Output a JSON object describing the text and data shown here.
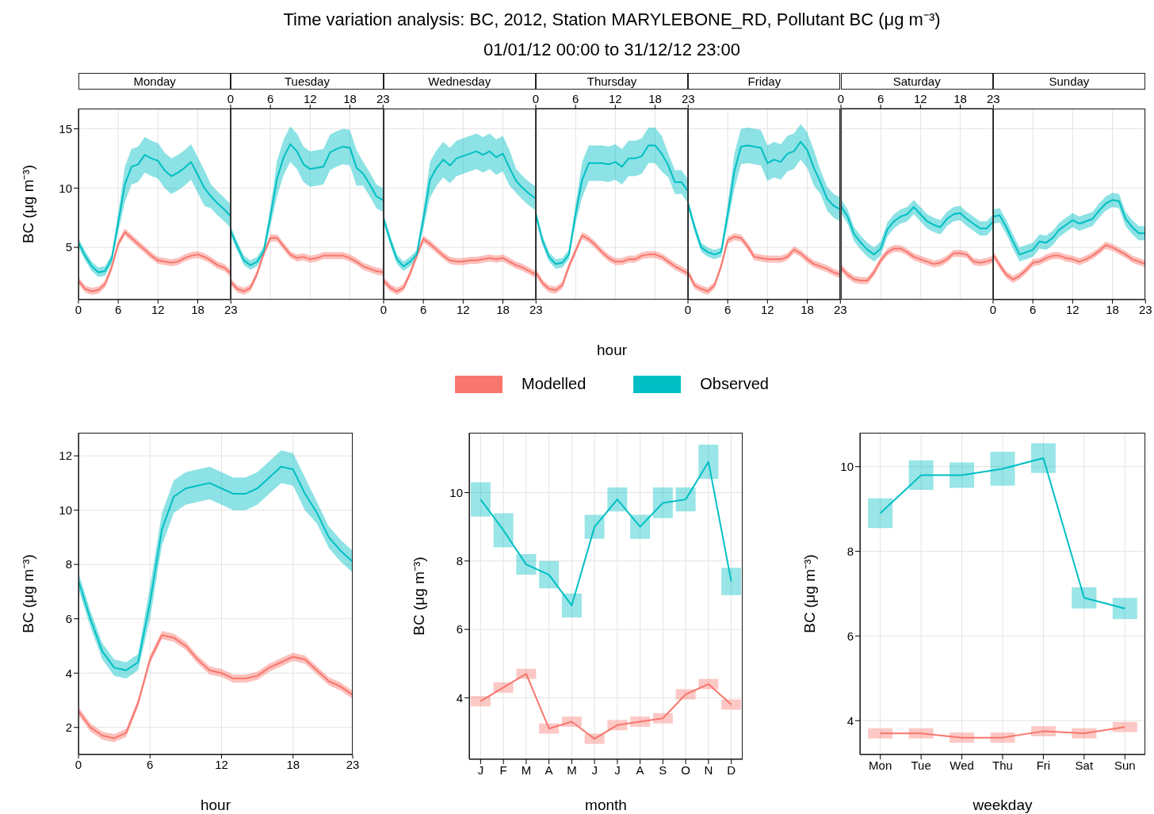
{
  "chart_data": [
    {
      "type": "line",
      "title": "Monday",
      "annotations": [
        "Time variation analysis: BC, 2012, Station MARYLEBONE_RD, Pollutant BC (μg m⁻³)",
        "01/01/12 00:00 to 31/12/12 23:00"
      ],
      "ylabel": "BC (μg m⁻³)",
      "x": [
        0,
        1,
        2,
        3,
        4,
        5,
        6,
        7,
        8,
        9,
        10,
        11,
        12,
        13,
        14,
        15,
        16,
        17,
        18,
        19,
        20,
        21,
        22,
        23
      ],
      "xlim": [
        0,
        23
      ],
      "xticks": [
        0,
        6,
        12,
        18,
        23
      ],
      "ylim": [
        0.6,
        16.7
      ],
      "yticks": [
        5,
        10,
        15
      ],
      "grid": true,
      "series": [
        {
          "color": "#f8766d",
          "values": [
            2.2,
            1.5,
            1.3,
            1.4,
            1.9,
            3.3,
            5.3,
            6.3,
            5.8,
            5.3,
            4.8,
            4.3,
            3.9,
            3.8,
            3.7,
            3.8,
            4.1,
            4.3,
            4.4,
            4.2,
            3.9,
            3.5,
            3.3,
            2.8
          ],
          "lower": [
            1.9,
            1.2,
            1.0,
            1.1,
            1.6,
            3.0,
            5.0,
            6.0,
            5.5,
            5.0,
            4.5,
            4.0,
            3.6,
            3.5,
            3.4,
            3.5,
            3.8,
            4.0,
            4.1,
            3.9,
            3.6,
            3.2,
            3.0,
            2.5
          ],
          "upper": [
            2.5,
            1.8,
            1.6,
            1.7,
            2.2,
            3.6,
            5.6,
            6.6,
            6.1,
            5.6,
            5.1,
            4.6,
            4.2,
            4.1,
            4.0,
            4.1,
            4.4,
            4.6,
            4.7,
            4.5,
            4.2,
            3.8,
            3.6,
            3.1
          ]
        },
        {
          "color": "#00bfc4",
          "values": [
            5.4,
            4.3,
            3.4,
            2.9,
            3.0,
            4.0,
            7.1,
            10.3,
            11.8,
            12.0,
            12.8,
            12.5,
            12.3,
            11.5,
            11.0,
            11.3,
            11.7,
            12.2,
            11.1,
            10.0,
            9.3,
            8.7,
            8.2,
            7.6
          ],
          "lower": [
            5.0,
            3.9,
            3.0,
            2.5,
            2.6,
            3.6,
            6.3,
            8.8,
            10.3,
            10.5,
            11.3,
            11.0,
            10.8,
            10.0,
            9.5,
            9.8,
            10.2,
            10.7,
            9.6,
            8.5,
            8.3,
            7.7,
            7.2,
            6.6
          ],
          "upper": [
            5.8,
            4.7,
            3.8,
            3.3,
            3.4,
            4.4,
            7.9,
            11.8,
            13.3,
            13.5,
            14.3,
            14.0,
            13.8,
            13.0,
            12.5,
            12.8,
            13.2,
            13.7,
            12.6,
            11.5,
            10.3,
            9.7,
            9.2,
            8.6
          ]
        }
      ]
    },
    {
      "type": "line",
      "title": "Tuesday",
      "x": [
        0,
        1,
        2,
        3,
        4,
        5,
        6,
        7,
        8,
        9,
        10,
        11,
        12,
        13,
        14,
        15,
        16,
        17,
        18,
        19,
        20,
        21,
        22,
        23
      ],
      "xlim": [
        0,
        23
      ],
      "xticks": [
        0,
        6,
        12,
        18,
        23
      ],
      "ylim": [
        0.6,
        16.7
      ],
      "yticks": [
        5,
        10,
        15
      ],
      "grid": true,
      "tick_labels": "x",
      "series": [
        {
          "color": "#f8766d",
          "values": [
            2.1,
            1.5,
            1.3,
            1.6,
            2.8,
            4.5,
            5.8,
            5.8,
            5.1,
            4.4,
            4.1,
            4.2,
            4.0,
            4.1,
            4.3,
            4.3,
            4.3,
            4.3,
            4.1,
            3.8,
            3.4,
            3.2,
            3.0,
            2.9
          ],
          "lower": [
            1.8,
            1.2,
            1.0,
            1.3,
            2.5,
            4.2,
            5.5,
            5.5,
            4.8,
            4.1,
            3.8,
            3.9,
            3.7,
            3.8,
            4.0,
            4.0,
            4.0,
            4.0,
            3.8,
            3.5,
            3.1,
            2.9,
            2.7,
            2.6
          ],
          "upper": [
            2.4,
            1.8,
            1.6,
            1.9,
            3.1,
            4.8,
            6.1,
            6.1,
            5.4,
            4.7,
            4.4,
            4.5,
            4.3,
            4.4,
            4.6,
            4.6,
            4.6,
            4.6,
            4.4,
            4.1,
            3.7,
            3.5,
            3.3,
            3.2
          ]
        },
        {
          "color": "#00bfc4",
          "values": [
            6.4,
            5.1,
            3.9,
            3.5,
            3.8,
            4.7,
            7.6,
            10.8,
            12.6,
            13.7,
            13.1,
            12.0,
            11.6,
            11.7,
            11.8,
            13.0,
            13.3,
            13.5,
            13.4,
            11.7,
            11.2,
            10.3,
            9.3,
            9.0
          ],
          "lower": [
            6.0,
            4.7,
            3.5,
            3.1,
            3.4,
            4.3,
            6.8,
            9.3,
            11.1,
            12.2,
            11.6,
            10.5,
            10.1,
            10.2,
            10.3,
            11.5,
            11.8,
            12.0,
            11.9,
            10.2,
            10.2,
            9.3,
            8.3,
            8.0
          ],
          "upper": [
            6.8,
            5.5,
            4.3,
            3.9,
            4.2,
            5.1,
            8.4,
            12.3,
            14.1,
            15.2,
            14.6,
            13.5,
            13.1,
            13.2,
            13.3,
            14.5,
            14.8,
            15.0,
            14.9,
            13.2,
            12.2,
            11.3,
            10.3,
            10.0
          ]
        }
      ]
    },
    {
      "type": "line",
      "title": "Wednesday",
      "x": [
        0,
        1,
        2,
        3,
        4,
        5,
        6,
        7,
        8,
        9,
        10,
        11,
        12,
        13,
        14,
        15,
        16,
        17,
        18,
        19,
        20,
        21,
        22,
        23
      ],
      "xlim": [
        0,
        23
      ],
      "xticks": [
        0,
        6,
        12,
        18,
        23
      ],
      "ylim": [
        0.6,
        16.7
      ],
      "yticks": [
        5,
        10,
        15
      ],
      "grid": true,
      "tick_labels": "x",
      "series": [
        {
          "color": "#f8766d",
          "values": [
            2.2,
            1.6,
            1.3,
            1.6,
            2.8,
            4.3,
            5.7,
            5.3,
            4.8,
            4.3,
            3.9,
            3.8,
            3.8,
            3.9,
            3.9,
            4.0,
            4.1,
            4.0,
            4.1,
            3.8,
            3.5,
            3.3,
            3.0,
            2.7
          ],
          "lower": [
            1.9,
            1.3,
            1.0,
            1.3,
            2.5,
            4.0,
            5.4,
            5.0,
            4.5,
            4.0,
            3.6,
            3.5,
            3.5,
            3.6,
            3.6,
            3.7,
            3.8,
            3.7,
            3.8,
            3.5,
            3.2,
            3.0,
            2.7,
            2.4
          ],
          "upper": [
            2.5,
            1.9,
            1.6,
            1.9,
            3.1,
            4.6,
            6.0,
            5.6,
            5.1,
            4.6,
            4.2,
            4.1,
            4.1,
            4.2,
            4.2,
            4.3,
            4.4,
            4.3,
            4.4,
            4.1,
            3.8,
            3.6,
            3.3,
            3.0
          ]
        },
        {
          "color": "#00bfc4",
          "values": [
            7.4,
            5.6,
            4.0,
            3.4,
            3.8,
            4.4,
            7.4,
            10.7,
            11.7,
            12.4,
            11.9,
            12.5,
            12.7,
            12.9,
            13.1,
            12.8,
            13.1,
            12.6,
            12.9,
            11.7,
            10.6,
            10.0,
            9.5,
            9.1
          ],
          "lower": [
            7.0,
            5.2,
            3.6,
            3.0,
            3.4,
            4.0,
            6.6,
            9.2,
            10.2,
            10.9,
            10.4,
            11.0,
            11.2,
            11.4,
            11.6,
            11.3,
            11.6,
            11.1,
            11.4,
            10.2,
            9.6,
            9.0,
            8.5,
            8.1
          ],
          "upper": [
            7.8,
            6.0,
            4.4,
            3.8,
            4.2,
            4.8,
            8.2,
            12.2,
            13.2,
            13.9,
            13.4,
            14.0,
            14.2,
            14.4,
            14.6,
            14.3,
            14.6,
            14.1,
            14.4,
            13.2,
            11.6,
            11.0,
            10.5,
            10.1
          ]
        }
      ]
    },
    {
      "type": "line",
      "title": "Thursday",
      "xlabel": "hour",
      "legend": "bottom",
      "x": [
        0,
        1,
        2,
        3,
        4,
        5,
        6,
        7,
        8,
        9,
        10,
        11,
        12,
        13,
        14,
        15,
        16,
        17,
        18,
        19,
        20,
        21,
        22,
        23
      ],
      "xlim": [
        0,
        23
      ],
      "xticks": [
        0,
        6,
        12,
        18,
        23
      ],
      "ylim": [
        0.6,
        16.7
      ],
      "yticks": [
        5,
        10,
        15
      ],
      "grid": true,
      "tick_labels": "x",
      "series": [
        {
          "name": "Modelled",
          "color": "#f8766d",
          "values": [
            2.9,
            2.0,
            1.5,
            1.4,
            1.8,
            3.4,
            4.7,
            6.0,
            5.7,
            5.2,
            4.6,
            4.1,
            3.8,
            3.8,
            4.0,
            4.0,
            4.3,
            4.4,
            4.4,
            4.2,
            3.8,
            3.4,
            3.1,
            2.8
          ],
          "lower": [
            2.6,
            1.7,
            1.2,
            1.1,
            1.5,
            3.1,
            4.4,
            5.7,
            5.4,
            4.9,
            4.3,
            3.8,
            3.5,
            3.5,
            3.7,
            3.7,
            4.0,
            4.1,
            4.1,
            3.9,
            3.5,
            3.1,
            2.8,
            2.5
          ],
          "upper": [
            3.2,
            2.3,
            1.8,
            1.7,
            2.1,
            3.7,
            5.0,
            6.3,
            6.0,
            5.5,
            4.9,
            4.4,
            4.1,
            4.1,
            4.3,
            4.3,
            4.6,
            4.7,
            4.7,
            4.5,
            4.1,
            3.7,
            3.4,
            3.1
          ]
        },
        {
          "name": "Observed",
          "color": "#00bfc4",
          "values": [
            7.8,
            5.6,
            4.2,
            3.6,
            3.7,
            4.4,
            7.8,
            10.7,
            12.1,
            12.1,
            12.1,
            12.0,
            12.2,
            11.8,
            12.5,
            12.5,
            12.7,
            13.6,
            13.6,
            12.9,
            11.9,
            10.5,
            10.5,
            9.7
          ],
          "lower": [
            7.4,
            5.2,
            3.8,
            3.2,
            3.3,
            4.0,
            7.0,
            9.2,
            10.6,
            10.6,
            10.6,
            10.5,
            10.7,
            10.3,
            11.0,
            11.0,
            11.2,
            12.1,
            12.1,
            11.4,
            10.9,
            9.5,
            9.5,
            8.7
          ],
          "upper": [
            8.2,
            6.0,
            4.6,
            4.0,
            4.1,
            4.8,
            8.6,
            12.2,
            13.6,
            13.6,
            13.6,
            13.5,
            13.7,
            13.3,
            14.0,
            14.0,
            14.2,
            15.1,
            15.1,
            14.4,
            12.9,
            11.5,
            11.5,
            10.7
          ]
        }
      ]
    },
    {
      "type": "line",
      "title": "Friday",
      "x": [
        0,
        1,
        2,
        3,
        4,
        5,
        6,
        7,
        8,
        9,
        10,
        11,
        12,
        13,
        14,
        15,
        16,
        17,
        18,
        19,
        20,
        21,
        22,
        23
      ],
      "xlim": [
        0,
        23
      ],
      "xticks": [
        0,
        6,
        12,
        18,
        23
      ],
      "ylim": [
        0.6,
        16.7
      ],
      "yticks": [
        5,
        10,
        15
      ],
      "grid": true,
      "tick_labels": "x",
      "series": [
        {
          "color": "#f8766d",
          "values": [
            2.9,
            1.8,
            1.5,
            1.3,
            1.8,
            3.4,
            5.6,
            5.9,
            5.8,
            5.1,
            4.2,
            4.1,
            4.0,
            4.0,
            4.0,
            4.2,
            4.8,
            4.5,
            4.0,
            3.6,
            3.4,
            3.2,
            2.9,
            2.7
          ],
          "lower": [
            2.6,
            1.5,
            1.2,
            1.0,
            1.5,
            3.1,
            5.3,
            5.6,
            5.5,
            4.8,
            3.9,
            3.8,
            3.7,
            3.7,
            3.7,
            3.9,
            4.5,
            4.2,
            3.7,
            3.3,
            3.1,
            2.9,
            2.6,
            2.4
          ],
          "upper": [
            3.2,
            2.1,
            1.8,
            1.6,
            2.1,
            3.7,
            5.9,
            6.2,
            6.1,
            5.4,
            4.5,
            4.4,
            4.3,
            4.3,
            4.3,
            4.5,
            5.1,
            4.8,
            4.3,
            3.9,
            3.7,
            3.5,
            3.2,
            3.0
          ]
        },
        {
          "color": "#00bfc4",
          "values": [
            8.7,
            6.7,
            5.0,
            4.6,
            4.4,
            4.6,
            7.8,
            11.4,
            13.5,
            13.6,
            13.5,
            13.4,
            12.1,
            12.4,
            12.2,
            12.9,
            13.1,
            13.9,
            13.2,
            11.7,
            10.5,
            9.1,
            8.5,
            8.2
          ],
          "lower": [
            8.3,
            6.3,
            4.6,
            4.2,
            4.0,
            4.2,
            7.0,
            9.9,
            12.0,
            12.1,
            12.0,
            11.9,
            10.6,
            10.9,
            10.7,
            11.4,
            11.6,
            12.4,
            11.7,
            10.2,
            9.5,
            8.1,
            7.5,
            7.2
          ],
          "upper": [
            9.1,
            7.1,
            5.4,
            5.0,
            4.8,
            5.0,
            8.6,
            12.9,
            15.0,
            15.1,
            15.0,
            14.9,
            13.6,
            13.9,
            13.7,
            14.4,
            14.6,
            15.4,
            14.7,
            13.2,
            11.5,
            10.1,
            9.5,
            9.2
          ]
        }
      ]
    },
    {
      "type": "line",
      "title": "Saturday",
      "x": [
        0,
        1,
        2,
        3,
        4,
        5,
        6,
        7,
        8,
        9,
        10,
        11,
        12,
        13,
        14,
        15,
        16,
        17,
        18,
        19,
        20,
        21,
        22,
        23
      ],
      "xlim": [
        0,
        23
      ],
      "xticks": [
        0,
        6,
        12,
        18,
        23
      ],
      "ylim": [
        0.6,
        16.7
      ],
      "yticks": [
        5,
        10,
        15
      ],
      "grid": true,
      "tick_labels": "x",
      "series": [
        {
          "color": "#f8766d",
          "values": [
            3.3,
            2.7,
            2.3,
            2.2,
            2.2,
            2.9,
            3.9,
            4.6,
            4.9,
            4.9,
            4.6,
            4.2,
            4.0,
            3.8,
            3.6,
            3.7,
            4.0,
            4.5,
            4.5,
            4.4,
            3.8,
            3.7,
            3.8,
            4.0
          ],
          "lower": [
            3.0,
            2.4,
            2.0,
            1.9,
            1.9,
            2.6,
            3.6,
            4.3,
            4.6,
            4.6,
            4.3,
            3.9,
            3.7,
            3.5,
            3.3,
            3.4,
            3.7,
            4.2,
            4.2,
            4.1,
            3.5,
            3.4,
            3.5,
            3.7
          ],
          "upper": [
            3.6,
            3.0,
            2.6,
            2.5,
            2.5,
            3.2,
            4.2,
            4.9,
            5.2,
            5.2,
            4.9,
            4.5,
            4.3,
            4.1,
            3.9,
            4.0,
            4.3,
            4.8,
            4.8,
            4.7,
            4.1,
            4.0,
            4.1,
            4.3
          ]
        },
        {
          "color": "#00bfc4",
          "values": [
            8.5,
            7.6,
            6.1,
            5.4,
            4.8,
            4.4,
            4.9,
            6.5,
            7.2,
            7.6,
            7.8,
            8.4,
            7.8,
            7.2,
            6.9,
            6.7,
            7.4,
            7.8,
            7.9,
            7.4,
            7.0,
            6.6,
            6.6,
            7.2
          ],
          "lower": [
            7.9,
            7.0,
            5.5,
            4.8,
            4.2,
            3.8,
            4.3,
            5.9,
            6.6,
            7.0,
            7.2,
            7.8,
            7.2,
            6.6,
            6.3,
            6.1,
            6.8,
            7.2,
            7.3,
            6.8,
            6.4,
            6.0,
            6.0,
            6.6
          ],
          "upper": [
            9.1,
            8.2,
            6.7,
            6.0,
            5.4,
            5.0,
            5.5,
            7.1,
            7.8,
            8.2,
            8.4,
            9.0,
            8.4,
            7.8,
            7.5,
            7.3,
            8.0,
            8.4,
            8.5,
            8.0,
            7.6,
            7.2,
            7.2,
            7.8
          ]
        }
      ]
    },
    {
      "type": "line",
      "title": "Sunday",
      "x": [
        0,
        1,
        2,
        3,
        4,
        5,
        6,
        7,
        8,
        9,
        10,
        11,
        12,
        13,
        14,
        15,
        16,
        17,
        18,
        19,
        20,
        21,
        22,
        23
      ],
      "xlim": [
        0,
        23
      ],
      "xticks": [
        0,
        6,
        12,
        18,
        23
      ],
      "ylim": [
        0.6,
        16.7
      ],
      "yticks": [
        5,
        10,
        15
      ],
      "grid": true,
      "tick_labels": "x",
      "series": [
        {
          "color": "#f8766d",
          "values": [
            4.4,
            3.5,
            2.7,
            2.3,
            2.6,
            3.1,
            3.7,
            3.8,
            4.1,
            4.3,
            4.3,
            4.1,
            4.0,
            3.8,
            4.0,
            4.3,
            4.7,
            5.2,
            5.0,
            4.7,
            4.4,
            4.0,
            3.8,
            3.6
          ],
          "lower": [
            4.1,
            3.2,
            2.4,
            2.0,
            2.3,
            2.8,
            3.4,
            3.5,
            3.8,
            4.0,
            4.0,
            3.8,
            3.7,
            3.5,
            3.7,
            4.0,
            4.4,
            4.9,
            4.7,
            4.4,
            4.1,
            3.7,
            3.5,
            3.3
          ],
          "upper": [
            4.7,
            3.8,
            3.0,
            2.6,
            2.9,
            3.4,
            4.0,
            4.1,
            4.4,
            4.6,
            4.6,
            4.4,
            4.3,
            4.1,
            4.3,
            4.6,
            5.0,
            5.5,
            5.3,
            5.0,
            4.7,
            4.3,
            4.1,
            3.9
          ]
        },
        {
          "color": "#00bfc4",
          "values": [
            7.6,
            7.7,
            6.7,
            5.5,
            4.4,
            4.6,
            4.8,
            5.5,
            5.4,
            5.8,
            6.5,
            6.9,
            7.3,
            7.0,
            7.2,
            7.4,
            8.1,
            8.7,
            9.0,
            8.9,
            7.4,
            6.7,
            6.2,
            6.2
          ],
          "lower": [
            7.0,
            7.1,
            6.1,
            4.9,
            3.8,
            4.0,
            4.2,
            4.9,
            4.8,
            5.2,
            5.9,
            6.3,
            6.7,
            6.4,
            6.6,
            6.8,
            7.5,
            8.1,
            8.4,
            8.3,
            6.8,
            6.1,
            5.6,
            5.6
          ],
          "upper": [
            8.2,
            8.3,
            7.3,
            6.1,
            5.0,
            5.2,
            5.4,
            6.1,
            6.0,
            6.4,
            7.1,
            7.5,
            7.9,
            7.6,
            7.8,
            8.0,
            8.7,
            9.3,
            9.6,
            9.5,
            8.0,
            7.3,
            6.8,
            6.8
          ]
        }
      ]
    },
    {
      "type": "line",
      "xlabel": "hour",
      "ylabel": "BC (μg m⁻³)",
      "x": [
        0,
        1,
        2,
        3,
        4,
        5,
        6,
        7,
        8,
        9,
        10,
        11,
        12,
        13,
        14,
        15,
        16,
        17,
        18,
        19,
        20,
        21,
        22,
        23
      ],
      "xlim": [
        0,
        23
      ],
      "xticks": [
        0,
        6,
        12,
        18,
        23
      ],
      "ylim": [
        1,
        12.85
      ],
      "yticks": [
        2,
        4,
        6,
        8,
        10,
        12
      ],
      "grid": true,
      "series": [
        {
          "color": "#f8766d",
          "values": [
            2.6,
            2.0,
            1.7,
            1.6,
            1.8,
            2.9,
            4.5,
            5.4,
            5.3,
            5.0,
            4.5,
            4.1,
            4.0,
            3.8,
            3.8,
            3.9,
            4.2,
            4.4,
            4.6,
            4.5,
            4.1,
            3.7,
            3.5,
            3.2
          ],
          "lower": [
            2.45,
            1.85,
            1.55,
            1.45,
            1.65,
            2.75,
            4.35,
            5.25,
            5.15,
            4.85,
            4.35,
            3.95,
            3.85,
            3.65,
            3.65,
            3.75,
            4.05,
            4.25,
            4.45,
            4.35,
            3.95,
            3.55,
            3.35,
            3.05
          ],
          "upper": [
            2.75,
            2.15,
            1.85,
            1.75,
            1.95,
            3.05,
            4.65,
            5.55,
            5.45,
            5.15,
            4.65,
            4.25,
            4.15,
            3.95,
            3.95,
            4.05,
            4.35,
            4.55,
            4.75,
            4.65,
            4.25,
            3.85,
            3.65,
            3.35
          ]
        },
        {
          "color": "#00bfc4",
          "values": [
            7.4,
            6.0,
            4.8,
            4.2,
            4.1,
            4.4,
            6.6,
            9.3,
            10.5,
            10.8,
            10.9,
            11.0,
            10.8,
            10.6,
            10.6,
            10.8,
            11.2,
            11.6,
            11.5,
            10.6,
            9.9,
            9.0,
            8.5,
            8.1
          ],
          "lower": [
            7.1,
            5.7,
            4.5,
            3.9,
            3.8,
            4.1,
            6.0,
            8.7,
            9.9,
            10.2,
            10.3,
            10.4,
            10.2,
            10.0,
            10.0,
            10.2,
            10.6,
            11.0,
            10.9,
            10.0,
            9.5,
            8.6,
            8.1,
            7.7
          ],
          "upper": [
            7.7,
            6.3,
            5.1,
            4.5,
            4.4,
            4.7,
            7.2,
            9.9,
            11.1,
            11.4,
            11.5,
            11.6,
            11.4,
            11.2,
            11.2,
            11.4,
            11.8,
            12.2,
            12.1,
            11.2,
            10.3,
            9.4,
            8.9,
            8.5
          ]
        }
      ]
    },
    {
      "type": "line",
      "xlabel": "month",
      "ylabel": "BC (μg m⁻³)",
      "categories": [
        "J",
        "F",
        "M",
        "A",
        "M",
        "J",
        "J",
        "A",
        "S",
        "O",
        "N",
        "D"
      ],
      "ylim": [
        2.2,
        11.75
      ],
      "yticks": [
        4,
        6,
        8,
        10
      ],
      "grid": true,
      "series": [
        {
          "color": "#f8766d",
          "values": [
            3.9,
            4.3,
            4.7,
            3.1,
            3.3,
            2.8,
            3.2,
            3.3,
            3.4,
            4.1,
            4.4,
            3.8
          ],
          "errors": [
            0.15,
            0.15,
            0.15,
            0.15,
            0.15,
            0.15,
            0.15,
            0.15,
            0.15,
            0.15,
            0.15,
            0.15
          ]
        },
        {
          "color": "#00bfc4",
          "values": [
            9.8,
            8.9,
            7.9,
            7.6,
            6.7,
            9.0,
            9.8,
            9.0,
            9.7,
            9.8,
            10.9,
            7.4
          ],
          "errors": [
            0.5,
            0.5,
            0.3,
            0.4,
            0.35,
            0.35,
            0.35,
            0.35,
            0.45,
            0.35,
            0.5,
            0.4
          ]
        }
      ]
    },
    {
      "type": "line",
      "xlabel": "weekday",
      "ylabel": "BC (μg m⁻³)",
      "categories": [
        "Mon",
        "Tue",
        "Wed",
        "Thu",
        "Fri",
        "Sat",
        "Sun"
      ],
      "ylim": [
        3.2,
        10.8
      ],
      "yticks": [
        4,
        6,
        8,
        10
      ],
      "grid": true,
      "series": [
        {
          "color": "#f8766d",
          "values": [
            3.7,
            3.7,
            3.6,
            3.6,
            3.75,
            3.7,
            3.85
          ],
          "errors": [
            0.12,
            0.12,
            0.12,
            0.12,
            0.12,
            0.12,
            0.12
          ]
        },
        {
          "color": "#00bfc4",
          "values": [
            8.9,
            9.8,
            9.8,
            9.95,
            10.2,
            6.9,
            6.65
          ],
          "errors": [
            0.35,
            0.35,
            0.3,
            0.4,
            0.35,
            0.25,
            0.25
          ]
        }
      ]
    }
  ]
}
